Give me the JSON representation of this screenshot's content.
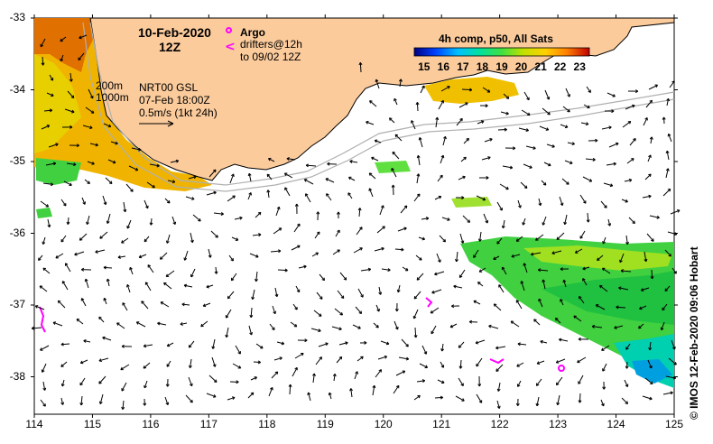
{
  "map": {
    "date": "10-Feb-2020",
    "time": "12Z",
    "legend": {
      "argo_label": "Argo",
      "drifters_label": "drifters@12h",
      "drifters_label2": "to 09/02 12Z",
      "argo_color": "#ff00ff"
    },
    "contours": {
      "c200": "200m",
      "c1000": "1000m"
    },
    "product": {
      "name": "NRT00 GSL",
      "date": "07-Feb 18:00Z",
      "scale_label": "0.5m/s (1kt 24h)"
    },
    "colorbar": {
      "title": "4h comp, p50, All Sats",
      "ticks": [
        "15",
        "16",
        "17",
        "18",
        "19",
        "20",
        "21",
        "22",
        "23"
      ],
      "min": 14.5,
      "max": 23.5
    },
    "axes": {
      "lat_labels": [
        "-33",
        "-34",
        "-35",
        "-36",
        "-37",
        "-38"
      ],
      "lon_labels": [
        "114",
        "115",
        "116",
        "117",
        "118",
        "119",
        "120",
        "121",
        "122",
        "123",
        "124",
        "125"
      ],
      "lon_range": [
        114,
        125
      ],
      "lat_range": [
        -33,
        -38.5
      ]
    },
    "credit": "© IMOS 12-Feb-2020 09:06 Hobart",
    "colors": {
      "land": "#fbcb9c",
      "land_edge": "#000000",
      "contour": "#b0b0b0",
      "arrow": "#000000"
    }
  }
}
